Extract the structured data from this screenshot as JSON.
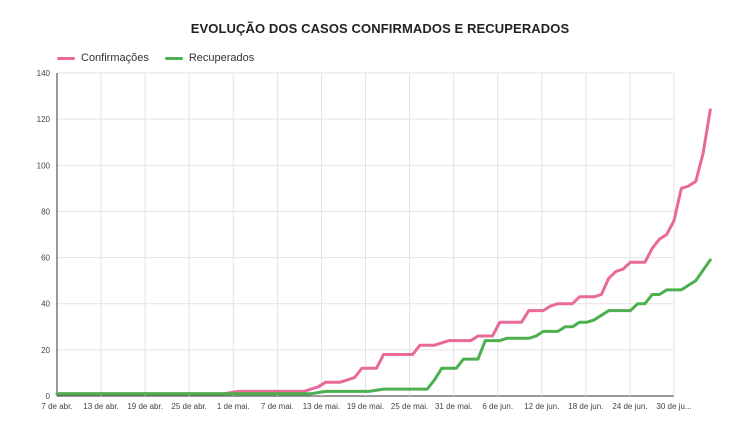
{
  "chart_data": {
    "type": "line",
    "title": "EVOLUÇÃO DOS CASOS CONFIRMADOS E RECUPERADOS",
    "xlabel": "",
    "ylabel": "",
    "ylim": [
      0,
      140
    ],
    "yticks": [
      0,
      20,
      40,
      60,
      80,
      100,
      120,
      140
    ],
    "grid": true,
    "legend_position": "top-left",
    "x_tick_labels": [
      "7 de abr.",
      "13 de abr.",
      "19 de abr.",
      "25 de abr.",
      "1 de mai.",
      "7 de mai.",
      "13 de mai.",
      "19 de mai.",
      "25 de mai.",
      "31 de mai.",
      "6 de jun.",
      "12 de jun.",
      "18 de jun.",
      "24 de jun.",
      "30 de ju..."
    ],
    "x_start": "2020-04-07",
    "x_end": "2020-07-01",
    "series": [
      {
        "name": "Confirmações",
        "color": "#e8699a",
        "points": [
          [
            "2020-04-07",
            1
          ],
          [
            "2020-04-30",
            1
          ],
          [
            "2020-05-02",
            2
          ],
          [
            "2020-05-11",
            2
          ],
          [
            "2020-05-12",
            3
          ],
          [
            "2020-05-13",
            4
          ],
          [
            "2020-05-14",
            6
          ],
          [
            "2020-05-16",
            6
          ],
          [
            "2020-05-17",
            7
          ],
          [
            "2020-05-18",
            8
          ],
          [
            "2020-05-19",
            12
          ],
          [
            "2020-05-21",
            12
          ],
          [
            "2020-05-22",
            18
          ],
          [
            "2020-05-26",
            18
          ],
          [
            "2020-05-27",
            22
          ],
          [
            "2020-05-29",
            22
          ],
          [
            "2020-05-31",
            24
          ],
          [
            "2020-06-03",
            24
          ],
          [
            "2020-06-04",
            26
          ],
          [
            "2020-06-06",
            26
          ],
          [
            "2020-06-07",
            32
          ],
          [
            "2020-06-10",
            32
          ],
          [
            "2020-06-11",
            37
          ],
          [
            "2020-06-13",
            37
          ],
          [
            "2020-06-14",
            39
          ],
          [
            "2020-06-15",
            40
          ],
          [
            "2020-06-17",
            40
          ],
          [
            "2020-06-18",
            43
          ],
          [
            "2020-06-20",
            43
          ],
          [
            "2020-06-21",
            44
          ],
          [
            "2020-06-22",
            51
          ],
          [
            "2020-06-23",
            54
          ],
          [
            "2020-06-24",
            55
          ],
          [
            "2020-06-25",
            58
          ],
          [
            "2020-06-27",
            58
          ],
          [
            "2020-06-28",
            64
          ],
          [
            "2020-06-29",
            68
          ],
          [
            "2020-06-30",
            70
          ],
          [
            "2020-07-01",
            76
          ],
          [
            "2020-07-02",
            90
          ],
          [
            "2020-07-03",
            91
          ],
          [
            "2020-07-04",
            93
          ],
          [
            "2020-07-05",
            105
          ],
          [
            "2020-07-06",
            124
          ]
        ]
      },
      {
        "name": "Recuperados",
        "color": "#4caf50",
        "points": [
          [
            "2020-04-07",
            1
          ],
          [
            "2020-05-12",
            1
          ],
          [
            "2020-05-14",
            2
          ],
          [
            "2020-05-20",
            2
          ],
          [
            "2020-05-22",
            3
          ],
          [
            "2020-05-28",
            3
          ],
          [
            "2020-05-29",
            7
          ],
          [
            "2020-05-30",
            12
          ],
          [
            "2020-06-01",
            12
          ],
          [
            "2020-06-02",
            16
          ],
          [
            "2020-06-04",
            16
          ],
          [
            "2020-06-05",
            24
          ],
          [
            "2020-06-07",
            24
          ],
          [
            "2020-06-08",
            25
          ],
          [
            "2020-06-11",
            25
          ],
          [
            "2020-06-12",
            26
          ],
          [
            "2020-06-13",
            28
          ],
          [
            "2020-06-15",
            28
          ],
          [
            "2020-06-16",
            30
          ],
          [
            "2020-06-17",
            30
          ],
          [
            "2020-06-18",
            32
          ],
          [
            "2020-06-19",
            32
          ],
          [
            "2020-06-20",
            33
          ],
          [
            "2020-06-21",
            35
          ],
          [
            "2020-06-22",
            37
          ],
          [
            "2020-06-25",
            37
          ],
          [
            "2020-06-26",
            40
          ],
          [
            "2020-06-27",
            40
          ],
          [
            "2020-06-28",
            44
          ],
          [
            "2020-06-29",
            44
          ],
          [
            "2020-06-30",
            46
          ],
          [
            "2020-07-02",
            46
          ],
          [
            "2020-07-04",
            50
          ],
          [
            "2020-07-06",
            59
          ]
        ]
      }
    ]
  }
}
